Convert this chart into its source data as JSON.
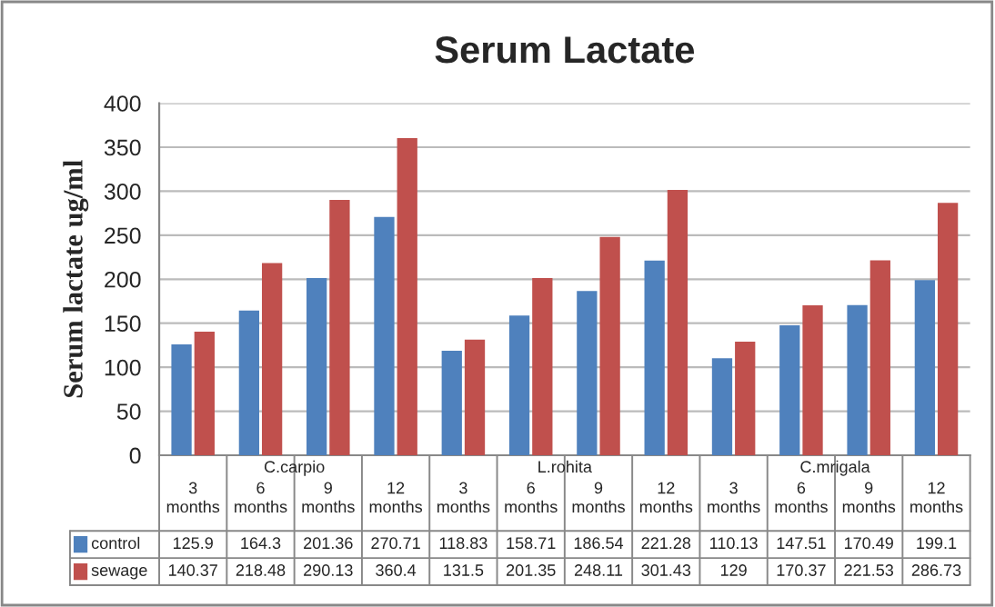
{
  "chart_data": {
    "type": "bar",
    "title": "Serum Lactate",
    "ylabel": "Serum lactate ug/ml",
    "categories": [
      "3\nmonths",
      "6\nmonths",
      "9\nmonths",
      "12\nmonths",
      "3\nmonths",
      "6\nmonths",
      "9\nmonths",
      "12\nmonths",
      "3\nmonths",
      "6\nmonths",
      "9\nmonths",
      "12\nmonths"
    ],
    "annotations": [
      "C.carpio",
      "L.rohita",
      "C.mrigala"
    ],
    "series": [
      {
        "name": "control",
        "color": "#4f81bd",
        "values": [
          125.9,
          164.3,
          201.36,
          270.71,
          118.83,
          158.71,
          186.54,
          221.28,
          110.13,
          147.51,
          170.49,
          199.1
        ]
      },
      {
        "name": "sewage",
        "color": "#c0504d",
        "values": [
          140.37,
          218.48,
          290.13,
          360.4,
          131.5,
          201.35,
          248.11,
          301.43,
          129,
          170.37,
          221.53,
          286.73
        ]
      }
    ],
    "ylim": [
      0,
      400
    ],
    "yticks": [
      0,
      50,
      100,
      150,
      200,
      250,
      300,
      350,
      400
    ],
    "grid": "y",
    "legend": "bottom",
    "data_labels": true
  }
}
